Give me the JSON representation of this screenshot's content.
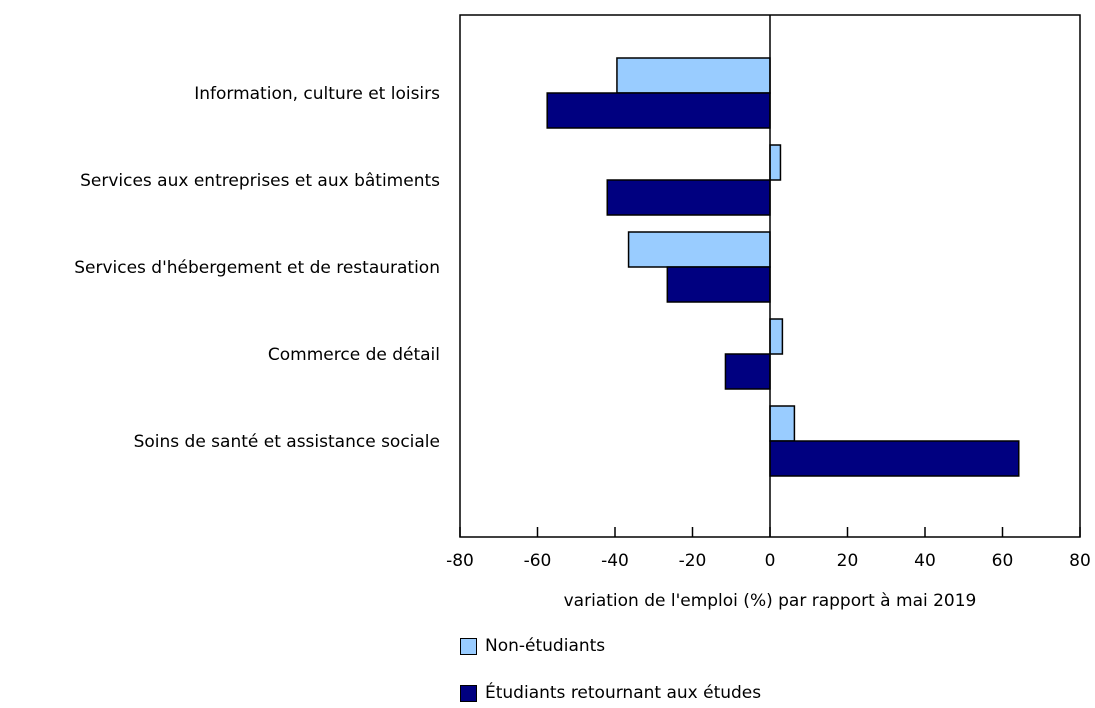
{
  "chart_data": {
    "type": "bar",
    "orientation": "horizontal",
    "categories": [
      "Information, culture et loisirs",
      "Services aux entreprises et aux bâtiments",
      "Services d'hébergement et de restauration",
      "Commerce de détail",
      "Soins de santé et assistance sociale"
    ],
    "series": [
      {
        "name": "Non-étudiants",
        "color": "#99ccff",
        "values": [
          -39.5,
          2.7,
          -36.5,
          3.2,
          6.3
        ]
      },
      {
        "name": "Étudiants retournant aux études",
        "color": "#000080",
        "values": [
          -57.5,
          -42,
          -26.5,
          -11.5,
          64.2
        ]
      }
    ],
    "xlabel": "variation de l'emploi (%) par rapport à mai 2019",
    "xlim": [
      -80,
      80
    ],
    "xticks": [
      -80,
      -60,
      -40,
      -20,
      0,
      20,
      40,
      60,
      80
    ],
    "grid": false,
    "legend_position": "bottom-left"
  }
}
